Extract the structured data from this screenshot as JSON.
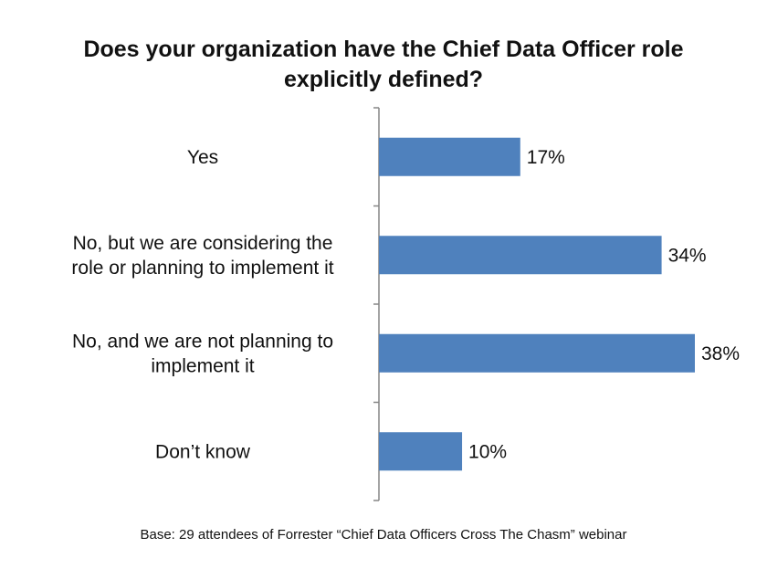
{
  "chart_data": {
    "type": "bar",
    "orientation": "horizontal",
    "title": "Does your organization have the Chief Data Officer role explicitly defined?",
    "title_lines": [
      "Does your organization have the Chief Data Officer role",
      "explicitly defined?"
    ],
    "categories": [
      "Yes",
      "No, but we are considering the role or planning to implement it",
      "No, and we are not planning to implement it",
      "Don’t know"
    ],
    "category_lines": [
      [
        "Yes"
      ],
      [
        "No, but we are considering the",
        "role or planning to implement it"
      ],
      [
        "No, and we are not planning to",
        "implement it"
      ],
      [
        "Don’t know"
      ]
    ],
    "values": [
      17,
      34,
      38,
      10
    ],
    "value_labels": [
      "17%",
      "34%",
      "38%",
      "10%"
    ],
    "unit": "%",
    "xlim": [
      0,
      38
    ],
    "grid": false,
    "legend": "none",
    "colors": {
      "bar": "#4f81bd",
      "axis": "#868686",
      "text": "#111111"
    }
  },
  "footnote": "Base: 29 attendees of Forrester “Chief Data Officers Cross The Chasm” webinar"
}
